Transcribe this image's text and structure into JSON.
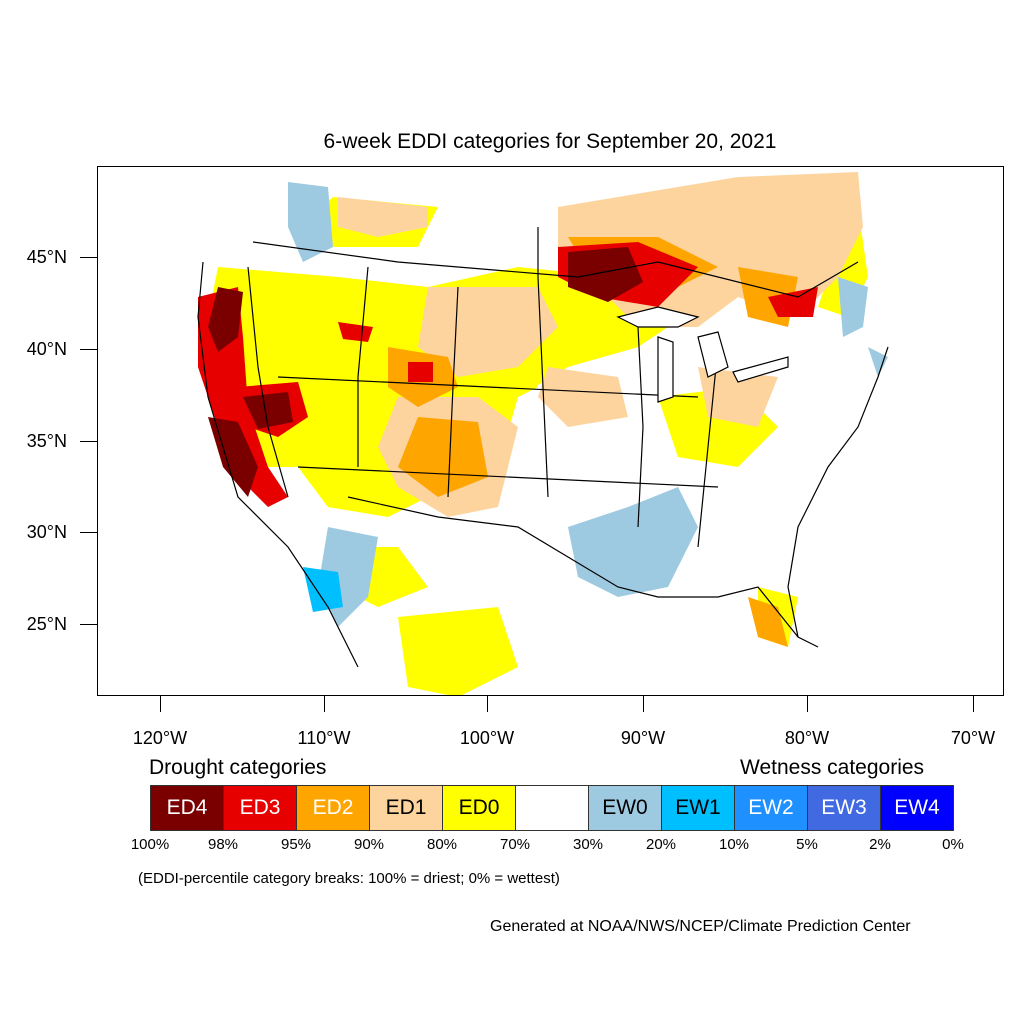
{
  "title": "6-week EDDI categories for September 20, 2021",
  "axes": {
    "lat_labels": [
      "45°N",
      "40°N",
      "35°N",
      "30°N",
      "25°N"
    ],
    "lon_labels": [
      "120°W",
      "110°W",
      "100°W",
      "90°W",
      "80°W",
      "70°W"
    ]
  },
  "legend": {
    "drought_heading": "Drought categories",
    "wetness_heading": "Wetness categories",
    "categories": [
      {
        "label": "ED4",
        "color": "#7a0000",
        "text_color": "#ffffff"
      },
      {
        "label": "ED3",
        "color": "#e60000",
        "text_color": "#ffffff"
      },
      {
        "label": "ED2",
        "color": "#ffa500",
        "text_color": "#ffffff"
      },
      {
        "label": "ED1",
        "color": "#fdd49e",
        "text_color": "#000000"
      },
      {
        "label": "ED0",
        "color": "#ffff00",
        "text_color": "#000000"
      },
      {
        "label": "",
        "color": "#ffffff",
        "text_color": "#000000"
      },
      {
        "label": "EW0",
        "color": "#9ecae1",
        "text_color": "#000000"
      },
      {
        "label": "EW1",
        "color": "#00bfff",
        "text_color": "#000000"
      },
      {
        "label": "EW2",
        "color": "#1e90ff",
        "text_color": "#ffffff"
      },
      {
        "label": "EW3",
        "color": "#4169e1",
        "text_color": "#ffffff"
      },
      {
        "label": "EW4",
        "color": "#0000ff",
        "text_color": "#ffffff"
      }
    ],
    "percent_breaks": [
      "100%",
      "98%",
      "95%",
      "90%",
      "80%",
      "70%",
      "30%",
      "20%",
      "10%",
      "5%",
      "2%",
      "0%"
    ]
  },
  "note": "(EDDI-percentile category breaks: 100% = driest; 0% = wettest)",
  "credit": "Generated at NOAA/NWS/NCEP/Climate Prediction Center"
}
